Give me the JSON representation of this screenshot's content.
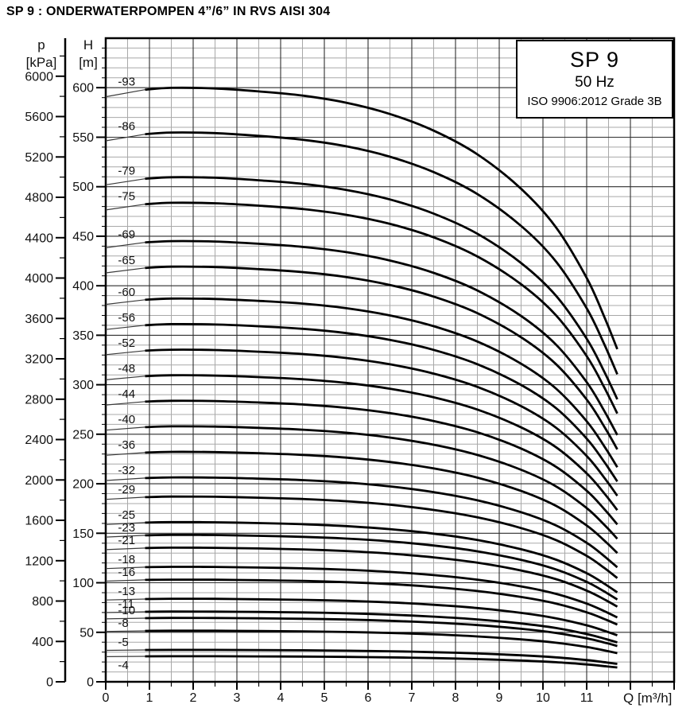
{
  "page_title": "SP 9 : ONDERWATERPOMPEN 4”/6” IN RVS AISI 304",
  "chart_data": {
    "type": "line",
    "model": "SP 9",
    "frequency": "50 Hz",
    "standard": "ISO 9906:2012 Grade 3B",
    "x_axis": {
      "label": "Q [m³/h]",
      "min": 0,
      "max": 13,
      "major_step": 1,
      "minor_step": 0.5,
      "tick_labels": [
        0,
        1,
        2,
        3,
        4,
        5,
        6,
        7,
        8,
        9,
        10,
        11
      ]
    },
    "y_axis_H": {
      "name": "H",
      "unit": "[m]",
      "min": 0,
      "max": 650,
      "major_step": 50,
      "minor_step": 10,
      "tick_labels": [
        0,
        50,
        100,
        150,
        200,
        250,
        300,
        350,
        400,
        450,
        500,
        550,
        600
      ]
    },
    "y_axis_p": {
      "name": "p",
      "unit": "[kPa]",
      "min": 0,
      "max": 6200,
      "major_step": 400,
      "minor_step": 200,
      "kpa_per_m": 9.81,
      "tick_labels": [
        0,
        400,
        800,
        1200,
        1600,
        2000,
        2400,
        2800,
        3200,
        3600,
        4000,
        4400,
        4800,
        5200,
        5600,
        6000
      ]
    },
    "head_per_stage_m": 6.45,
    "thin_segment": {
      "q_start": 0,
      "f_at_start": 0.985
    },
    "shape_profile": {
      "q": [
        0.9,
        1.5,
        2.5,
        3.5,
        4.5,
        5.5,
        6.5,
        7.5,
        8.5,
        9.5,
        10.3,
        11.0,
        11.4,
        11.7
      ],
      "f": [
        0.997,
        1.0,
        0.999,
        0.994,
        0.987,
        0.975,
        0.956,
        0.928,
        0.888,
        0.83,
        0.765,
        0.68,
        0.615,
        0.56
      ]
    },
    "curves": [
      {
        "label": "-93",
        "stages": 93
      },
      {
        "label": "-86",
        "stages": 86
      },
      {
        "label": "-79",
        "stages": 79
      },
      {
        "label": "-75",
        "stages": 75
      },
      {
        "label": "-69",
        "stages": 69
      },
      {
        "label": "-65",
        "stages": 65
      },
      {
        "label": "-60",
        "stages": 60
      },
      {
        "label": "-56",
        "stages": 56
      },
      {
        "label": "-52",
        "stages": 52
      },
      {
        "label": "-48",
        "stages": 48
      },
      {
        "label": "-44",
        "stages": 44
      },
      {
        "label": "-40",
        "stages": 40
      },
      {
        "label": "-36",
        "stages": 36
      },
      {
        "label": "-32",
        "stages": 32
      },
      {
        "label": "-29",
        "stages": 29
      },
      {
        "label": "-25",
        "stages": 25
      },
      {
        "label": "-23",
        "stages": 23
      },
      {
        "label": "-21",
        "stages": 21
      },
      {
        "label": "-18",
        "stages": 18
      },
      {
        "label": "-16",
        "stages": 16
      },
      {
        "label": "-13",
        "stages": 13
      },
      {
        "label": "-11",
        "stages": 11
      },
      {
        "label": "-10",
        "stages": 10
      },
      {
        "label": "-8",
        "stages": 8
      },
      {
        "label": "-5",
        "stages": 5
      },
      {
        "label": "-4",
        "stages": 4,
        "label_below": true
      }
    ]
  }
}
